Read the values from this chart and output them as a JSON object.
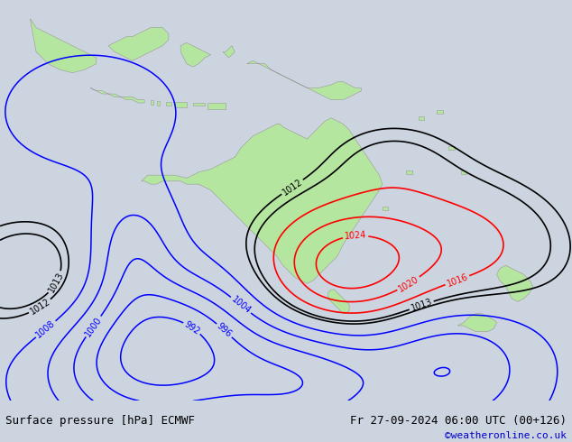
{
  "title_left": "Surface pressure [hPa] ECMWF",
  "title_right": "Fr 27-09-2024 06:00 UTC (00+126)",
  "copyright": "©weatheronline.co.uk",
  "bg_color": "#ccd4e0",
  "land_color": "#b5e6a0",
  "land_edge_color": "#999999",
  "fig_width": 6.34,
  "fig_height": 4.9,
  "dpi": 100,
  "lon_min": 90,
  "lon_max": 185,
  "lat_min": -58,
  "lat_max": 8
}
